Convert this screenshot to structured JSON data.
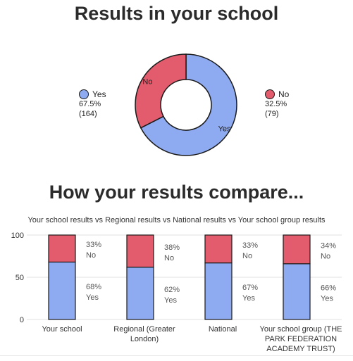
{
  "page": {
    "title": "Results in your school",
    "compare_title": "How your results compare...",
    "compare_subtitle": "Your school results vs Regional results vs National results vs Your school group results"
  },
  "colors": {
    "yes": "#8eaaf0",
    "no": "#e25c6d",
    "outline": "#1a1a1a",
    "grid": "#e2e2e2"
  },
  "chart_data": [
    {
      "type": "pie",
      "subtype": "donut",
      "title": "Results in your school",
      "slices": [
        {
          "label": "Yes",
          "percent": "67.5%",
          "count": "(164)",
          "value": 164
        },
        {
          "label": "No",
          "percent": "32.5%",
          "count": "(79)",
          "value": 79
        }
      ]
    },
    {
      "type": "bar",
      "stacked": true,
      "title": "How your results compare...",
      "subtitle": "Your school results vs Regional results vs National results vs Your school group results",
      "categories": [
        [
          "Your school"
        ],
        [
          "Regional (Greater",
          "London)"
        ],
        [
          "National"
        ],
        [
          "Your school group (THE",
          "PARK FEDERATION",
          "ACADEMY TRUST)"
        ]
      ],
      "series": [
        {
          "name": "Yes",
          "values": [
            68,
            62,
            67,
            66
          ],
          "labels": [
            "68%",
            "62%",
            "67%",
            "66%"
          ]
        },
        {
          "name": "No",
          "values": [
            33,
            38,
            33,
            34
          ],
          "labels": [
            "33%",
            "38%",
            "33%",
            "34%"
          ]
        }
      ],
      "ylim": [
        0,
        100
      ],
      "yticks": [
        "0",
        "50",
        "100"
      ],
      "grid": true
    }
  ]
}
